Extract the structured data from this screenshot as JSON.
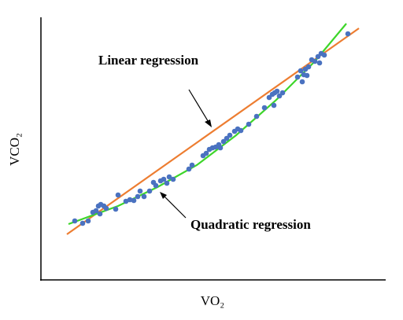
{
  "chart_data": {
    "type": "scatter",
    "xlabel": "VO₂",
    "ylabel": "VCO₂",
    "xlim": [
      0,
      440
    ],
    "ylim": [
      0,
      334
    ],
    "annotations": [
      "Linear regression",
      "Quadratic regression"
    ],
    "series": [
      {
        "type": "scatter",
        "color": "#4a72c0",
        "x": [
          43,
          53,
          60,
          66,
          70,
          73,
          76,
          80,
          75,
          83,
          95,
          98,
          108,
          113,
          118,
          123,
          126,
          131,
          138,
          143,
          146,
          152,
          156,
          160,
          163,
          168,
          188,
          192,
          206,
          210,
          214,
          218,
          222,
          226,
          228,
          232,
          236,
          240,
          246,
          250,
          254,
          264,
          274,
          284,
          290,
          294,
          297,
          300,
          303,
          307,
          296,
          326,
          330,
          332,
          334,
          336,
          340,
          344,
          348,
          352,
          356,
          360,
          390,
          354,
          338
        ],
        "values": [
          75,
          72,
          75,
          86,
          88,
          94,
          96,
          94,
          84,
          91,
          90,
          108,
          100,
          102,
          101,
          106,
          113,
          106,
          113,
          124,
          120,
          126,
          128,
          123,
          131,
          128,
          141,
          146,
          158,
          161,
          166,
          168,
          169,
          172,
          168,
          176,
          180,
          184,
          189,
          192,
          190,
          198,
          208,
          219,
          232,
          236,
          238,
          240,
          234,
          238,
          222,
          258,
          266,
          252,
          261,
          268,
          271,
          280,
          278,
          284,
          288,
          286,
          313,
          276,
          260
        ]
      },
      {
        "type": "line",
        "color": "#ed7d31",
        "x": [
          33,
          404
        ],
        "values": [
          58,
          320
        ]
      },
      {
        "type": "line",
        "color": "#3dd62a",
        "x": [
          35,
          98,
          148,
          198,
          248,
          298,
          348,
          388
        ],
        "values": [
          71,
          94,
          118,
          146,
          184,
          228,
          278,
          326
        ]
      }
    ]
  }
}
